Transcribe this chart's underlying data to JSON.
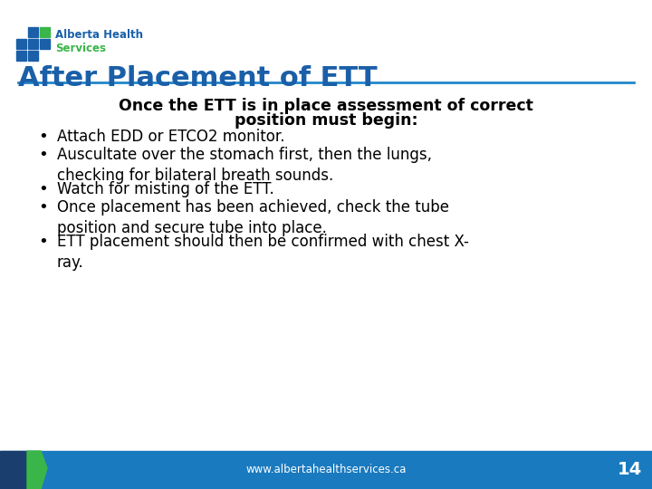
{
  "title": "After Placement of ETT",
  "title_color": "#1a5fa8",
  "title_fontsize": 22,
  "subtitle_line1": "Once the ETT is in place assessment of correct",
  "subtitle_line2": "position must begin:",
  "subtitle_fontsize": 12.5,
  "bullet_fontsize": 12,
  "bullets": [
    "Attach EDD or ETCO2 monitor.",
    "Auscultate over the stomach first, then the lungs,\nchecking for bilateral breath sounds.",
    "Watch for misting of the ETT.",
    "Once placement has been achieved, check the tube\nposition and secure tube into place.",
    "ETT placement should then be confirmed with chest X-\nray."
  ],
  "background_color": "#ffffff",
  "separator_color": "#2288cc",
  "footer_bg_color": "#1a7abf",
  "footer_text": "www.albertahealthservices.ca",
  "footer_page": "14",
  "footer_text_color": "#ffffff",
  "logo_blue": "#1a5fa8",
  "logo_green": "#3ab54a",
  "logo_text_blue": "#1a5fa8",
  "logo_text_green": "#3ab54a",
  "footer_green_accent": "#3ab54a",
  "footer_dark_blue": "#1a3f6e"
}
